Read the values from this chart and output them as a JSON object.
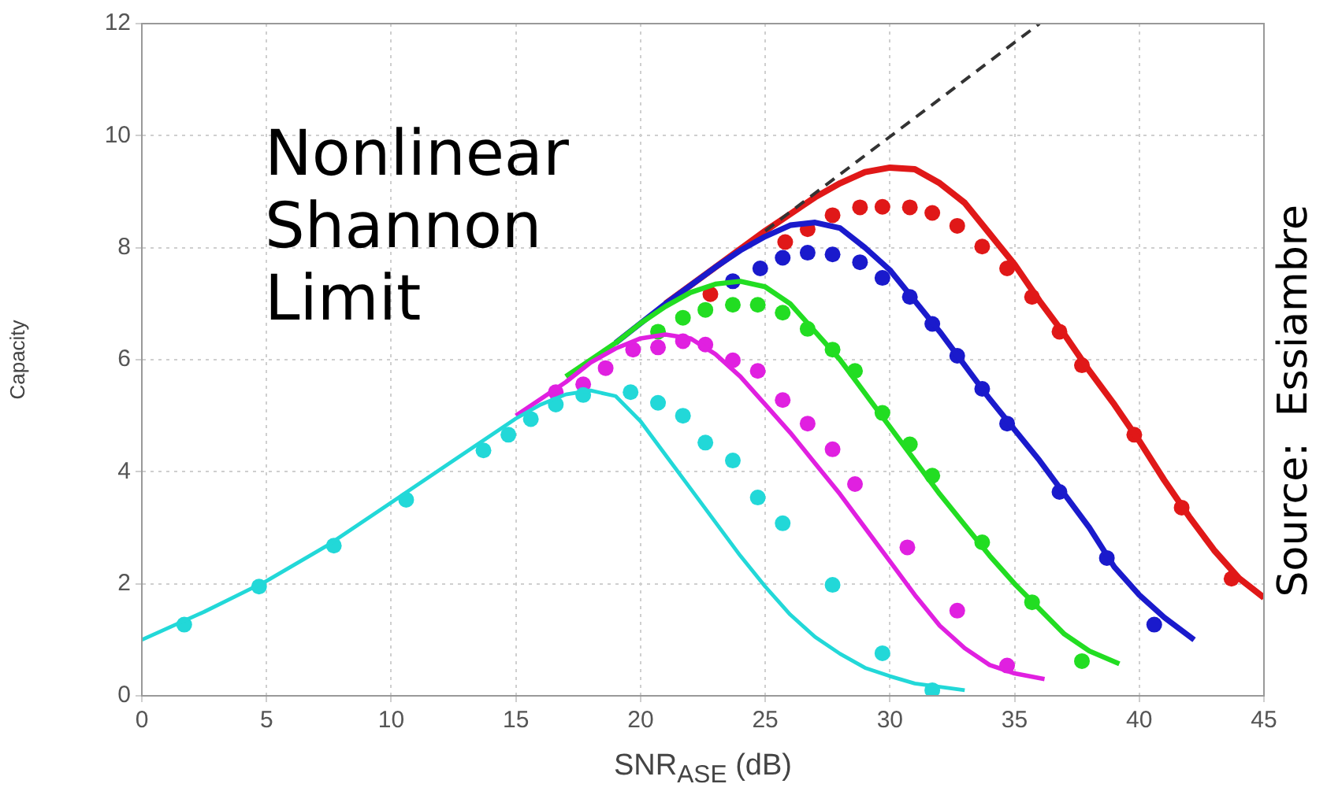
{
  "chart_data": {
    "type": "line",
    "xlabel": "SNR$_{ASE}$ (dB)",
    "ylabel": "Capacity",
    "xlim": [
      0,
      45
    ],
    "xticks": [
      0,
      5,
      10,
      15,
      20,
      25,
      30,
      35,
      40,
      45
    ],
    "ylim": [
      0,
      12
    ],
    "yticks": [
      0,
      2,
      4,
      6,
      8,
      10,
      12
    ],
    "grid": true,
    "legend": false,
    "annotations": [
      "Nonlinear Shannon Limit",
      "Source:  Essiambre"
    ],
    "series": [
      {
        "type": "line",
        "color": "#333333",
        "line_style": "dashed",
        "marker": "none",
        "x": [
          25,
          36
        ],
        "values": [
          8.3,
          12
        ]
      },
      {
        "type": "line",
        "color": "#22d8d8",
        "line_style": "solid",
        "marker": "none",
        "x": [
          0,
          2.5,
          5,
          7.5,
          10,
          12.5,
          15,
          16,
          17,
          18,
          19,
          20,
          21,
          22,
          23,
          24,
          25,
          26,
          27,
          28,
          29,
          30,
          31,
          33
        ],
        "values": [
          1.0,
          1.5,
          2.05,
          2.7,
          3.45,
          4.2,
          4.95,
          5.2,
          5.38,
          5.45,
          5.35,
          4.9,
          4.3,
          3.7,
          3.1,
          2.5,
          1.95,
          1.45,
          1.05,
          0.75,
          0.5,
          0.35,
          0.22,
          0.1
        ]
      },
      {
        "type": "line",
        "color": "#e020e0",
        "line_style": "solid",
        "marker": "none",
        "x": [
          15,
          17,
          18,
          19,
          20,
          21,
          22,
          23,
          24,
          25,
          26,
          27,
          28,
          29,
          30,
          31,
          32,
          33,
          34,
          35,
          36.2
        ],
        "values": [
          5.0,
          5.6,
          5.95,
          6.2,
          6.38,
          6.45,
          6.38,
          6.1,
          5.7,
          5.2,
          4.7,
          4.15,
          3.6,
          3.0,
          2.4,
          1.8,
          1.25,
          0.85,
          0.55,
          0.4,
          0.3
        ]
      },
      {
        "type": "line",
        "color": "#22dd22",
        "line_style": "solid",
        "marker": "none",
        "x": [
          17,
          19,
          20,
          21,
          22,
          23,
          24,
          25,
          26,
          27,
          28,
          29,
          30,
          31,
          32,
          33,
          34,
          35,
          36,
          37,
          38,
          39.2
        ],
        "values": [
          5.7,
          6.3,
          6.65,
          6.95,
          7.2,
          7.35,
          7.4,
          7.3,
          7.0,
          6.5,
          6.0,
          5.4,
          4.8,
          4.2,
          3.6,
          3.05,
          2.5,
          2.0,
          1.55,
          1.1,
          0.8,
          0.57
        ]
      },
      {
        "type": "line",
        "color": "#1a1acc",
        "line_style": "solid",
        "marker": "none",
        "x": [
          19,
          21,
          23,
          24,
          25,
          26,
          27,
          28,
          29,
          30,
          31,
          32,
          33,
          34,
          35,
          36,
          37,
          38,
          39,
          40,
          41,
          42.2
        ],
        "values": [
          6.3,
          7.0,
          7.65,
          7.95,
          8.2,
          8.4,
          8.45,
          8.35,
          8.0,
          7.6,
          7.05,
          6.5,
          5.9,
          5.3,
          4.75,
          4.2,
          3.6,
          3.0,
          2.3,
          1.8,
          1.4,
          1.0
        ]
      },
      {
        "type": "line",
        "color": "#e01818",
        "line_style": "solid",
        "marker": "none",
        "x": [
          21,
          23,
          25,
          26,
          27,
          28,
          29,
          30,
          31,
          32,
          33,
          34,
          35,
          36,
          37,
          38,
          39,
          40,
          41,
          42,
          43,
          44,
          45
        ],
        "values": [
          7.0,
          7.65,
          8.3,
          8.6,
          8.9,
          9.15,
          9.35,
          9.43,
          9.4,
          9.15,
          8.8,
          8.25,
          7.7,
          7.05,
          6.45,
          5.8,
          5.2,
          4.55,
          3.85,
          3.2,
          2.6,
          2.1,
          1.75
        ]
      },
      {
        "type": "scatter",
        "color": "#22d8d8",
        "marker": "circle",
        "x": [
          1.7,
          4.7,
          7.7,
          10.6,
          13.7,
          14.7,
          15.6,
          16.6,
          17.7,
          19.6,
          20.7,
          21.7,
          22.6,
          23.7,
          24.7,
          25.7,
          27.7,
          29.7,
          31.7
        ],
        "values": [
          1.27,
          1.95,
          2.68,
          3.5,
          4.38,
          4.66,
          4.94,
          5.2,
          5.37,
          5.42,
          5.23,
          5.0,
          4.52,
          4.2,
          3.54,
          3.08,
          1.98,
          0.76,
          0.1
        ]
      },
      {
        "type": "scatter",
        "color": "#e020e0",
        "marker": "circle",
        "x": [
          16.6,
          17.7,
          18.6,
          19.7,
          20.7,
          21.7,
          22.6,
          23.7,
          24.7,
          25.7,
          26.7,
          27.7,
          28.6,
          30.7,
          32.7,
          34.7
        ],
        "values": [
          5.42,
          5.56,
          5.85,
          6.18,
          6.22,
          6.33,
          6.27,
          5.99,
          5.8,
          5.28,
          4.86,
          4.4,
          3.78,
          2.65,
          1.52,
          0.54
        ]
      },
      {
        "type": "scatter",
        "color": "#22dd22",
        "marker": "circle",
        "x": [
          20.7,
          21.7,
          22.6,
          23.7,
          24.7,
          25.7,
          26.7,
          27.7,
          28.6,
          29.7,
          30.8,
          31.7,
          33.7,
          35.7,
          37.7
        ],
        "values": [
          6.5,
          6.75,
          6.89,
          6.98,
          6.98,
          6.84,
          6.55,
          6.18,
          5.8,
          5.05,
          4.49,
          3.93,
          2.74,
          1.67,
          0.62
        ]
      },
      {
        "type": "scatter",
        "color": "#1a1acc",
        "marker": "circle",
        "x": [
          23.7,
          24.8,
          25.7,
          26.7,
          27.7,
          28.8,
          29.7,
          30.8,
          31.7,
          32.7,
          33.7,
          34.7,
          36.8,
          38.7,
          40.6
        ],
        "values": [
          7.4,
          7.63,
          7.82,
          7.91,
          7.88,
          7.74,
          7.46,
          7.12,
          6.64,
          6.07,
          5.48,
          4.86,
          3.64,
          2.46,
          1.27
        ]
      },
      {
        "type": "scatter",
        "color": "#e01818",
        "marker": "circle",
        "x": [
          22.8,
          25.8,
          26.7,
          27.7,
          28.8,
          29.7,
          30.8,
          31.7,
          32.7,
          33.7,
          34.7,
          35.7,
          36.8,
          37.7,
          39.8,
          41.7,
          43.7
        ],
        "values": [
          7.17,
          8.1,
          8.33,
          8.58,
          8.72,
          8.73,
          8.72,
          8.62,
          8.39,
          8.02,
          7.63,
          7.12,
          6.5,
          5.9,
          4.66,
          3.36,
          2.09
        ]
      }
    ]
  }
}
